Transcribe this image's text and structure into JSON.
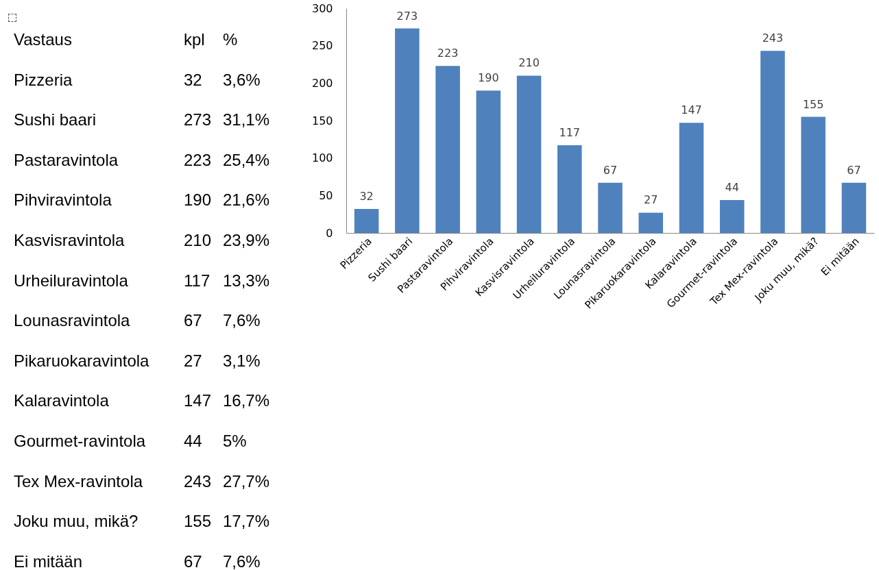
{
  "chart_data": [
    {
      "type": "other",
      "annotations": [
        "Vastaus",
        "kpl",
        "%",
        "Pizzeria",
        "32",
        "3,6%",
        "Sushi baari",
        "273",
        "31,1%",
        "Pastaravintola",
        "223",
        "25,4%",
        "Pihviravintola",
        "190",
        "21,6%",
        "Kasvisravintola",
        "210",
        "23,9%",
        "Urheiluravintola",
        "117",
        "13,3%",
        "Lounasravintola",
        "67",
        "7,6%",
        "Pikaruokaravintola",
        "27",
        "3,1%",
        "Kalaravintola",
        "147",
        "16,7%",
        "Gourmet-ravintola",
        "44",
        "5%",
        "Tex Mex-ravintola",
        "243",
        "27,7%",
        "Joku muu, mikä?",
        "155",
        "17,7%",
        "Ei mitään",
        "67",
        "7,6%"
      ]
    },
    {
      "type": "bar",
      "categories": [
        "Pizzeria",
        "Sushi baari",
        "Pastaravintola",
        "Pihviravintola",
        "Kasvisravintola",
        "Urheiluravintola",
        "Lounasravintola",
        "Pikaruokaravintola",
        "Kalaravintola",
        "Gourmet-ravintola",
        "Tex Mex-ravintola",
        "Joku muu, mikä?",
        "Ei mitään"
      ],
      "values": [
        32,
        273,
        223,
        190,
        210,
        117,
        67,
        27,
        147,
        44,
        243,
        155,
        67
      ],
      "color": "#4f81bd",
      "ylim": [
        0,
        300
      ],
      "yticks": [
        0,
        50,
        100,
        150,
        200,
        250,
        300
      ],
      "data_labels": true,
      "grid": false
    }
  ]
}
